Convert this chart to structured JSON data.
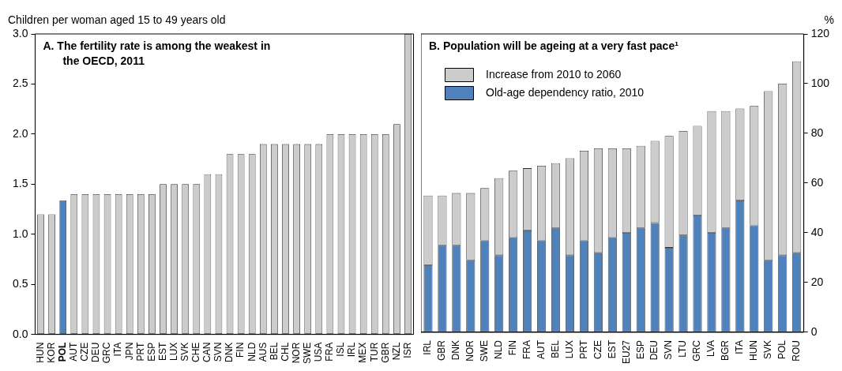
{
  "chart_data": [
    {
      "type": "bar",
      "title": "A. The fertility rate is among the weakest in the OECD, 2011",
      "ylabel": "Children per woman aged 15 to 49 years old",
      "categories": [
        "HUN",
        "KOR",
        "POL",
        "AUT",
        "CZE",
        "DEU",
        "GRC",
        "ITA",
        "JPN",
        "PRT",
        "ESP",
        "EST",
        "LUX",
        "SVK",
        "CHE",
        "CAN",
        "SVN",
        "DNK",
        "FIN",
        "NLD",
        "AUS",
        "BEL",
        "CHL",
        "NOR",
        "SWE",
        "USA",
        "FRA",
        "ISL",
        "IRL",
        "MEX",
        "TUR",
        "GBR",
        "NZL",
        "ISR"
      ],
      "values": [
        1.2,
        1.2,
        1.34,
        1.4,
        1.4,
        1.4,
        1.4,
        1.4,
        1.4,
        1.4,
        1.4,
        1.5,
        1.5,
        1.5,
        1.5,
        1.6,
        1.6,
        1.8,
        1.8,
        1.8,
        1.9,
        1.9,
        1.9,
        1.9,
        1.9,
        1.9,
        2.0,
        2.0,
        2.0,
        2.0,
        2.0,
        2.0,
        2.1,
        3.0
      ],
      "colors": [
        "#cccccc",
        "#cccccc",
        "#4f81bd",
        "#cccccc",
        "#cccccc",
        "#cccccc",
        "#cccccc",
        "#cccccc",
        "#cccccc",
        "#cccccc",
        "#cccccc",
        "#cccccc",
        "#cccccc",
        "#cccccc",
        "#cccccc",
        "#cccccc",
        "#cccccc",
        "#cccccc",
        "#cccccc",
        "#cccccc",
        "#cccccc",
        "#cccccc",
        "#cccccc",
        "#cccccc",
        "#cccccc",
        "#cccccc",
        "#cccccc",
        "#cccccc",
        "#cccccc",
        "#cccccc",
        "#cccccc",
        "#cccccc",
        "#cccccc",
        "#cccccc"
      ],
      "ylim": [
        0,
        3
      ],
      "yticks": [
        {
          "value": 0,
          "label": "0.0"
        },
        {
          "value": 0.5,
          "label": "0.5"
        },
        {
          "value": 1,
          "label": "1.0"
        },
        {
          "value": 1.5,
          "label": "1.5"
        },
        {
          "value": 2,
          "label": "2.0"
        },
        {
          "value": 2.5,
          "label": "2.5"
        },
        {
          "value": 3,
          "label": "3.0"
        }
      ],
      "grid": false,
      "legend": false
    },
    {
      "type": "bar",
      "title": "B. Population will be ageing at a very fast pace¹",
      "ylabel": "%",
      "stacked": true,
      "legend": "top left",
      "grid": false,
      "categories": [
        "IRL",
        "GBR",
        "DNK",
        "NOR",
        "SWE",
        "NLD",
        "FIN",
        "FRA",
        "AUT",
        "BEL",
        "LUX",
        "PRT",
        "CZE",
        "EST",
        "EU27",
        "ESP",
        "DEU",
        "SVN",
        "LTU",
        "GRC",
        "LVA",
        "BGR",
        "ITA",
        "HUN",
        "SVK",
        "POL",
        "ROU"
      ],
      "series": [
        {
          "name": "Old-age dependency ratio, 2010",
          "color": "#4f81bd",
          "values": [
            27,
            35,
            35,
            29,
            37,
            31,
            38,
            41,
            37,
            42,
            31,
            37,
            32,
            38,
            40,
            42,
            44,
            34,
            39,
            47,
            40,
            42,
            53,
            43,
            29,
            31,
            32
          ]
        },
        {
          "name": "Increase from 2010 to 2060",
          "color": "#cccccc",
          "values": [
            28,
            20,
            21,
            27,
            21,
            31,
            27,
            25,
            30,
            26,
            39,
            36,
            42,
            36,
            34,
            33,
            33,
            45,
            42,
            36,
            49,
            47,
            37,
            48,
            68,
            69,
            77
          ]
        }
      ],
      "ylim": [
        0,
        120
      ],
      "yticks": [
        0,
        20,
        40,
        60,
        80,
        100,
        120
      ]
    }
  ]
}
